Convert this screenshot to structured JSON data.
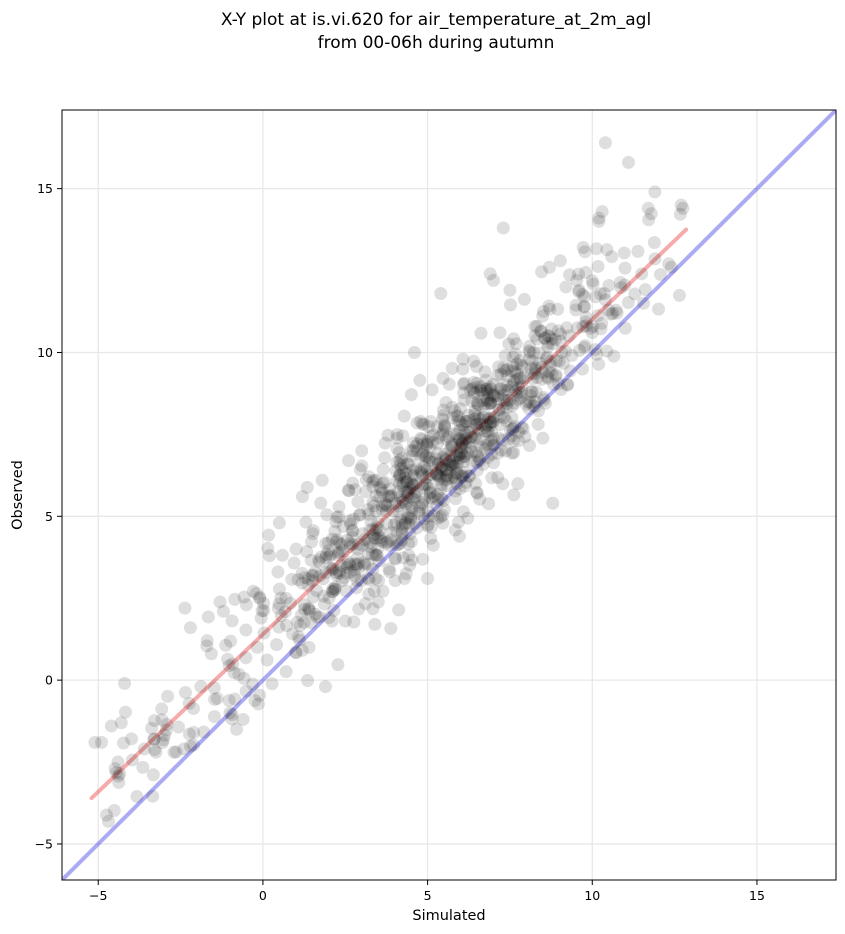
{
  "chart_data": {
    "type": "scatter",
    "title_lines": [
      "X-Y plot at is.vi.620 for air_temperature_at_2m_agl",
      "from 00-06h during autumn"
    ],
    "xlabel": "Simulated",
    "ylabel": "Observed",
    "xlim": [
      -6.1,
      17.4
    ],
    "ylim": [
      -6.1,
      17.4
    ],
    "xticks": [
      -5,
      0,
      5,
      10,
      15
    ],
    "yticks": [
      -5,
      0,
      5,
      10,
      15
    ],
    "grid": true,
    "point_color": "#000000",
    "point_alpha": 0.13,
    "one_to_one_line": {
      "x": [
        -6.1,
        17.4
      ],
      "y": [
        -6.1,
        17.4
      ],
      "color": "#0000dd",
      "alpha": 0.33
    },
    "fit_line": {
      "x": [
        -5.2,
        12.85
      ],
      "y": [
        -3.6,
        13.75
      ],
      "color": "#e00000",
      "alpha": 0.33
    },
    "highlighted_points": [
      [
        10.4,
        16.4
      ],
      [
        11.1,
        15.8
      ],
      [
        11.9,
        14.9
      ],
      [
        12.7,
        14.5
      ],
      [
        12.75,
        14.4
      ],
      [
        11.7,
        14.4
      ],
      [
        10.3,
        14.3
      ],
      [
        10.2,
        14.1
      ],
      [
        10.2,
        14.0
      ],
      [
        7.3,
        13.8
      ],
      [
        12.4,
        12.6
      ],
      [
        11.5,
        12.4
      ],
      [
        6.9,
        12.4
      ],
      [
        8.7,
        12.6
      ],
      [
        7.0,
        12.2
      ],
      [
        5.4,
        11.8
      ],
      [
        9.2,
        12.0
      ],
      [
        10.1,
        11.7
      ],
      [
        10.4,
        11.6
      ],
      [
        9.6,
        11.9
      ],
      [
        7.5,
        11.9
      ],
      [
        10.5,
        11.3
      ],
      [
        10.0,
        10.6
      ],
      [
        9.5,
        11.3
      ],
      [
        4.6,
        10.0
      ],
      [
        8.8,
        5.4
      ],
      [
        5.0,
        3.1
      ],
      [
        4.3,
        3.1
      ],
      [
        3.4,
        1.7
      ],
      [
        1.9,
        -0.2
      ],
      [
        -4.2,
        -0.1
      ],
      [
        -5.1,
        -1.9
      ],
      [
        -4.9,
        -1.9
      ],
      [
        -4.6,
        -1.4
      ],
      [
        -4.3,
        -1.3
      ],
      [
        -4.4,
        -2.5
      ],
      [
        -3.6,
        -2.1
      ],
      [
        -3.3,
        -1.8
      ],
      [
        -2.7,
        -2.2
      ],
      [
        -2.4,
        -2.1
      ],
      [
        -2.1,
        -1.6
      ],
      [
        -2.2,
        1.6
      ],
      [
        -0.8,
        -1.5
      ],
      [
        -1.0,
        -1.0
      ],
      [
        -0.6,
        -1.2
      ],
      [
        0.5,
        4.8
      ],
      [
        0.2,
        3.8
      ],
      [
        1.2,
        5.6
      ],
      [
        1.8,
        6.1
      ],
      [
        2.6,
        6.7
      ],
      [
        3.0,
        7.0
      ],
      [
        2.1,
        1.8
      ],
      [
        1.4,
        1.0
      ],
      [
        -0.5,
        2.3
      ],
      [
        -1.2,
        2.1
      ]
    ]
  }
}
